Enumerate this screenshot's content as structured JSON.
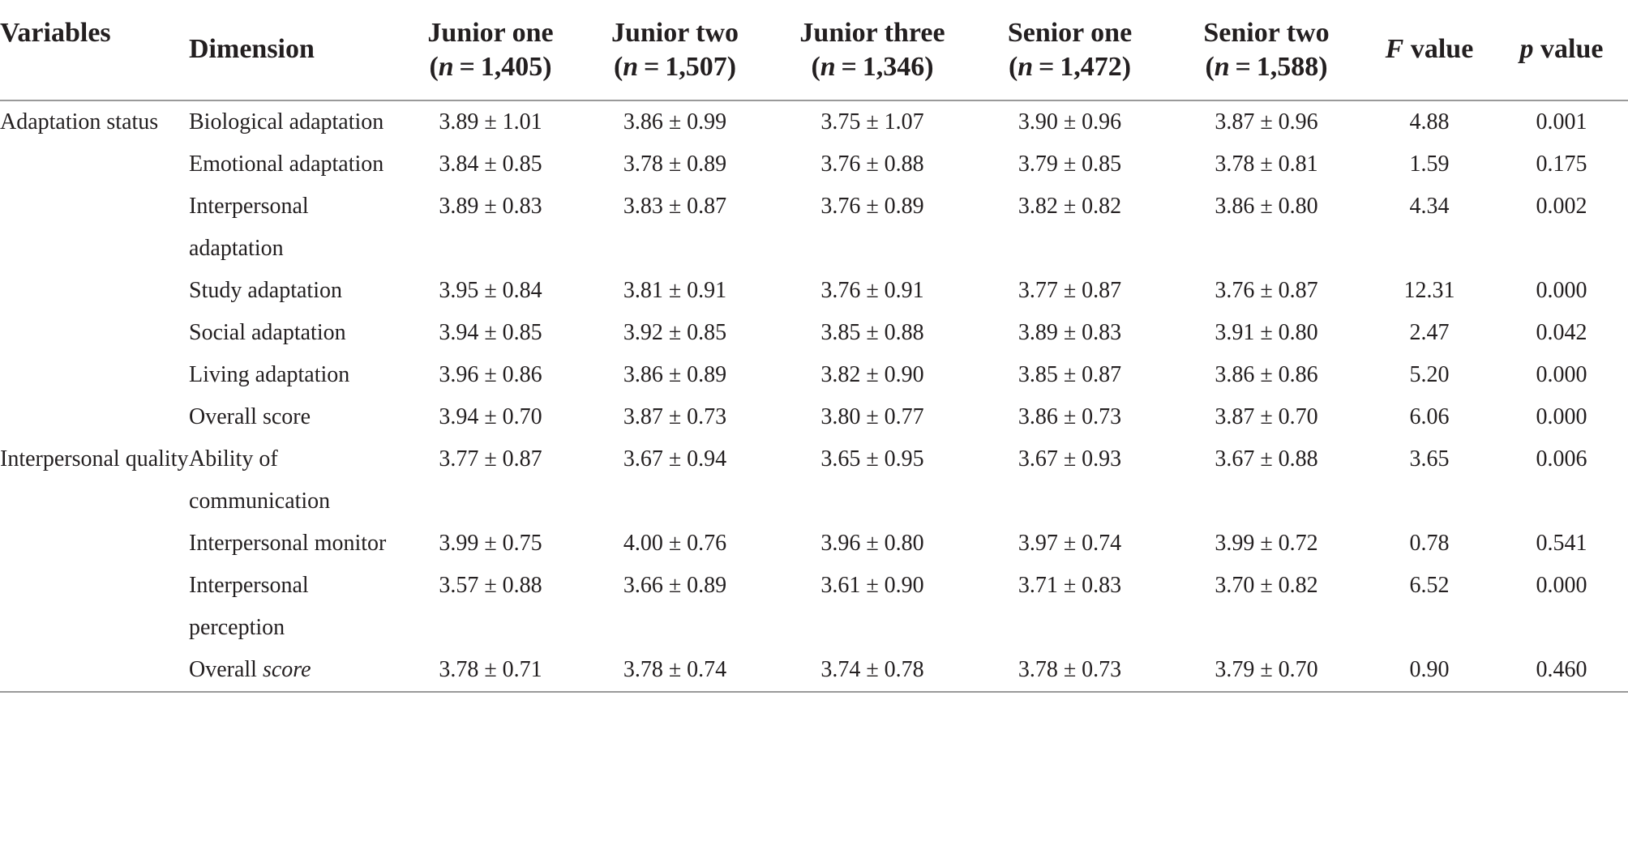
{
  "headers": {
    "variables": "Variables",
    "dimension": "Dimension",
    "groups": [
      {
        "name": "Junior one",
        "n_label": "n",
        "n_value": " = 1,405"
      },
      {
        "name": "Junior two",
        "n_label": "n",
        "n_value": " = 1,507"
      },
      {
        "name": "Junior three",
        "n_label": "n",
        "n_value": " = 1,346"
      },
      {
        "name": "Senior one",
        "n_label": "n",
        "n_value": " = 1,472"
      },
      {
        "name": "Senior two",
        "n_label": "n",
        "n_value": " = 1,588"
      }
    ],
    "f_italic": "F",
    "f_rest": " value",
    "p_italic": "p",
    "p_rest": " value"
  },
  "rows": [
    {
      "variable": "Adaptation status",
      "dim": "Biological adaptation",
      "dim_italic": "",
      "values": [
        "3.89 ± 1.01",
        "3.86 ± 0.99",
        "3.75 ± 1.07",
        "3.90 ± 0.96",
        "3.87 ± 0.96"
      ],
      "f": "4.88",
      "p": "0.001"
    },
    {
      "variable": "",
      "dim": "Emotional adaptation",
      "dim_italic": "",
      "values": [
        "3.84 ± 0.85",
        "3.78 ± 0.89",
        "3.76 ± 0.88",
        "3.79 ± 0.85",
        "3.78 ± 0.81"
      ],
      "f": "1.59",
      "p": "0.175"
    },
    {
      "variable": "",
      "dim": "Interpersonal adaptation",
      "dim_italic": "",
      "values": [
        "3.89 ± 0.83",
        "3.83 ± 0.87",
        "3.76 ± 0.89",
        "3.82 ± 0.82",
        "3.86 ± 0.80"
      ],
      "f": "4.34",
      "p": "0.002"
    },
    {
      "variable": "",
      "dim": "Study adaptation",
      "dim_italic": "",
      "values": [
        "3.95 ± 0.84",
        "3.81 ± 0.91",
        "3.76 ± 0.91",
        "3.77 ± 0.87",
        "3.76 ± 0.87"
      ],
      "f": "12.31",
      "p": "0.000"
    },
    {
      "variable": "",
      "dim": "Social adaptation",
      "dim_italic": "",
      "values": [
        "3.94 ± 0.85",
        "3.92 ± 0.85",
        "3.85 ± 0.88",
        "3.89 ± 0.83",
        "3.91 ± 0.80"
      ],
      "f": "2.47",
      "p": "0.042"
    },
    {
      "variable": "",
      "dim": "Living adaptation",
      "dim_italic": "",
      "values": [
        "3.96 ± 0.86",
        "3.86 ± 0.89",
        "3.82 ± 0.90",
        "3.85 ± 0.87",
        "3.86 ± 0.86"
      ],
      "f": "5.20",
      "p": "0.000"
    },
    {
      "variable": "",
      "dim": "Overall score",
      "dim_italic": "",
      "values": [
        "3.94 ± 0.70",
        "3.87 ± 0.73",
        "3.80 ± 0.77",
        "3.86 ± 0.73",
        "3.87 ± 0.70"
      ],
      "f": "6.06",
      "p": "0.000"
    },
    {
      "variable": "Interpersonal quality",
      "dim": "Ability of communication",
      "dim_italic": "",
      "values": [
        "3.77 ± 0.87",
        "3.67 ± 0.94",
        "3.65 ± 0.95",
        "3.67 ± 0.93",
        "3.67 ± 0.88"
      ],
      "f": "3.65",
      "p": "0.006"
    },
    {
      "variable": "",
      "dim": "Interpersonal monitor",
      "dim_italic": "",
      "values": [
        "3.99 ± 0.75",
        "4.00 ± 0.76",
        "3.96 ± 0.80",
        "3.97 ± 0.74",
        "3.99 ± 0.72"
      ],
      "f": "0.78",
      "p": "0.541"
    },
    {
      "variable": "",
      "dim": "Interpersonal perception",
      "dim_italic": "",
      "values": [
        "3.57 ± 0.88",
        "3.66 ± 0.89",
        "3.61 ± 0.90",
        "3.71 ± 0.83",
        "3.70 ± 0.82"
      ],
      "f": "6.52",
      "p": "0.000"
    },
    {
      "variable": "",
      "dim": "Overall ",
      "dim_italic": "score",
      "values": [
        "3.78 ± 0.71",
        "3.78 ± 0.74",
        "3.74 ± 0.78",
        "3.78 ± 0.73",
        "3.79 ± 0.70"
      ],
      "f": "0.90",
      "p": "0.460"
    }
  ]
}
